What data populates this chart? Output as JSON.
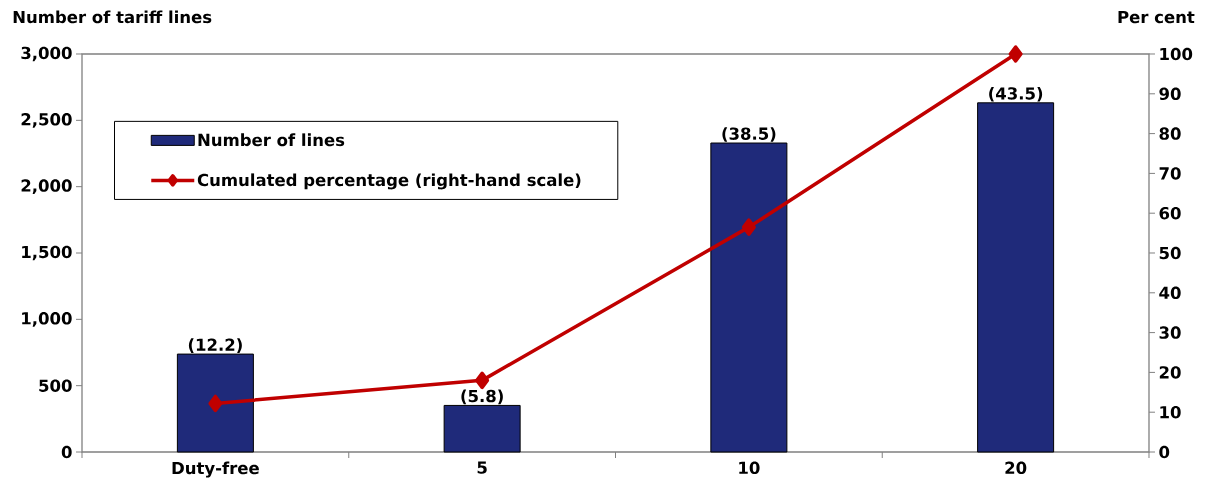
{
  "chart_data": {
    "type": "bar",
    "ylabel": "Number of tariff lines",
    "y2label": "Per cent",
    "categories": [
      "Duty-free",
      "5",
      "10",
      "20"
    ],
    "series": [
      {
        "name": "Number of lines",
        "color": "#1f2a7a",
        "values": [
          738,
          351,
          2329,
          2632
        ]
      },
      {
        "name": "Cumulated percentage (right-hand scale)",
        "type": "line",
        "axis": "y2",
        "color": "#c00000",
        "values": [
          12.2,
          18.0,
          56.5,
          100
        ]
      }
    ],
    "annotations": [
      {
        "text": "(12.2)",
        "x": "Duty-free",
        "y": 738
      },
      {
        "text": "(5.8)",
        "x": "5",
        "y": 351
      },
      {
        "text": "(38.5)",
        "x": "10",
        "y": 2329
      },
      {
        "text": "(43.5)",
        "x": "20",
        "y": 2632
      }
    ],
    "ylim": [
      0,
      3000
    ],
    "yticks": [
      0,
      500,
      {
        "value": 1000,
        "label": "1,000"
      },
      {
        "value": 1500,
        "label": "1,500"
      },
      {
        "value": 2000,
        "label": "2,000"
      },
      {
        "value": 2500,
        "label": "2,500"
      },
      {
        "value": 3000,
        "label": "3,000"
      }
    ],
    "y2lim": [
      0,
      100
    ],
    "y2ticks": [
      0,
      10,
      20,
      30,
      40,
      50,
      60,
      70,
      80,
      90,
      100
    ],
    "legend": "top left",
    "marker": "diamond",
    "line_style": "solid"
  }
}
